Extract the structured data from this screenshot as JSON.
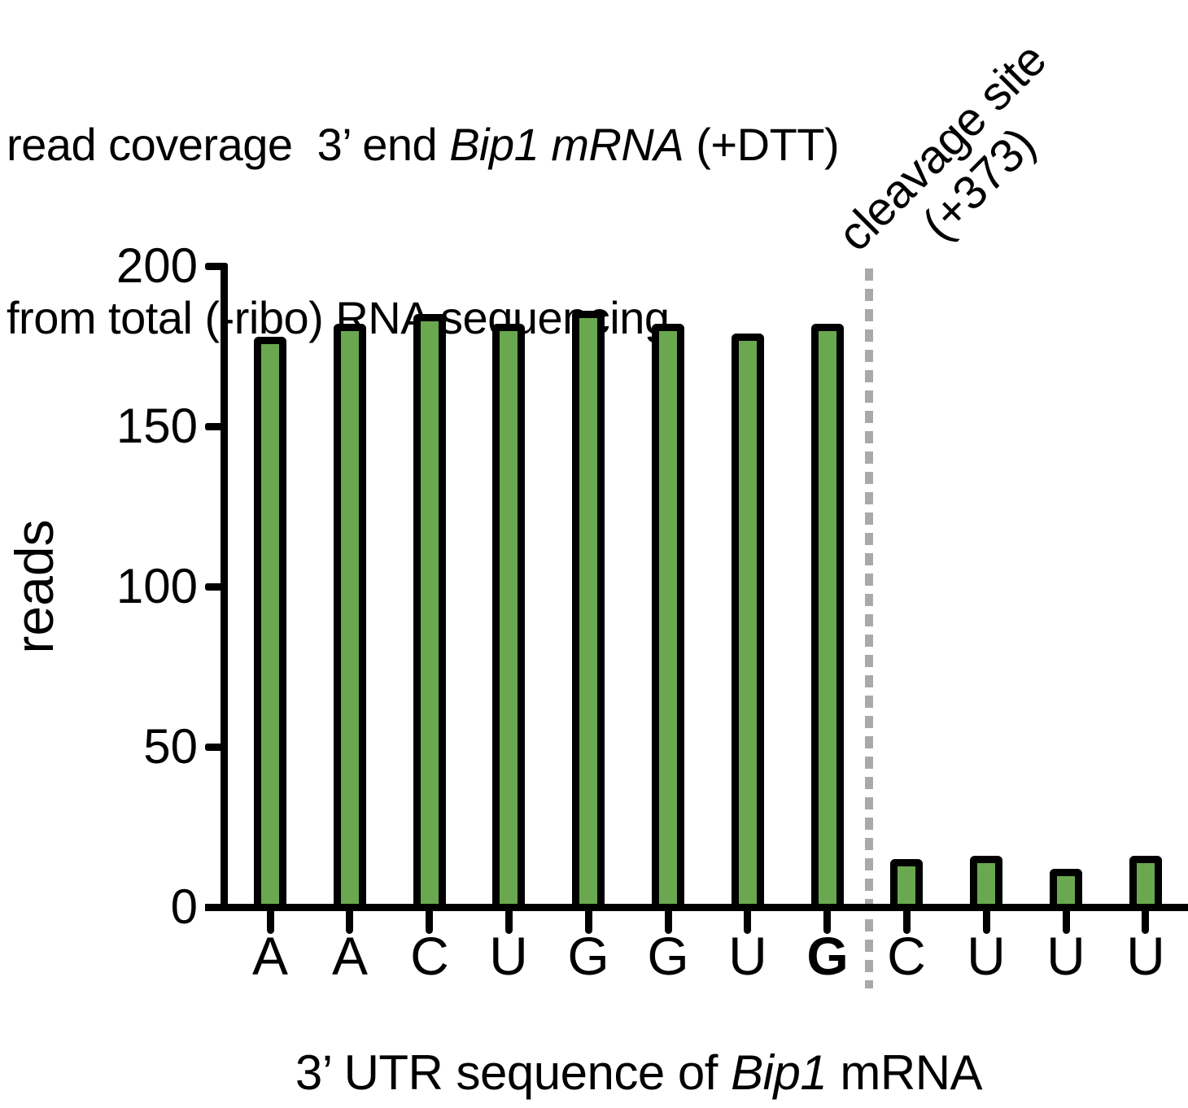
{
  "title": {
    "line1_prefix": "read coverage  3’ end ",
    "line1_italic": "Bip1 mRNA",
    "line1_suffix": " (+DTT)",
    "line2": "from total (-ribo) RNA sequencing"
  },
  "annotation": {
    "line1": "cleavage site",
    "line2": "(+373)"
  },
  "y_axis": {
    "label": "reads",
    "tick_labels": [
      "0",
      "50",
      "100",
      "150",
      "200"
    ]
  },
  "x_axis": {
    "label_prefix": "3’ UTR sequence of ",
    "label_italic": "Bip1",
    "label_suffix": " mRNA"
  },
  "chart_data": {
    "type": "bar",
    "title": "read coverage 3’ end Bip1 mRNA (+DTT) from total (-ribo) RNA sequencing",
    "categories": [
      "A",
      "A",
      "C",
      "U",
      "G",
      "G",
      "U",
      "G",
      "C",
      "U",
      "U",
      "U"
    ],
    "values": [
      178,
      182,
      185,
      182,
      186,
      182,
      179,
      182,
      15,
      16,
      12,
      16
    ],
    "bold_category_index": 7,
    "cleavage_line_between_categories": [
      7,
      8
    ],
    "annotation": "cleavage site (+373)",
    "xlabel": "3’ UTR sequence of Bip1 mRNA",
    "ylabel": "reads",
    "ylim": [
      0,
      200
    ],
    "yticks": [
      0,
      50,
      100,
      150,
      200
    ],
    "grid": false,
    "legend": false,
    "bar_color": "#6aa84f",
    "bar_border_color": "#000000",
    "dashed_line_color": "#a9a9a9"
  }
}
